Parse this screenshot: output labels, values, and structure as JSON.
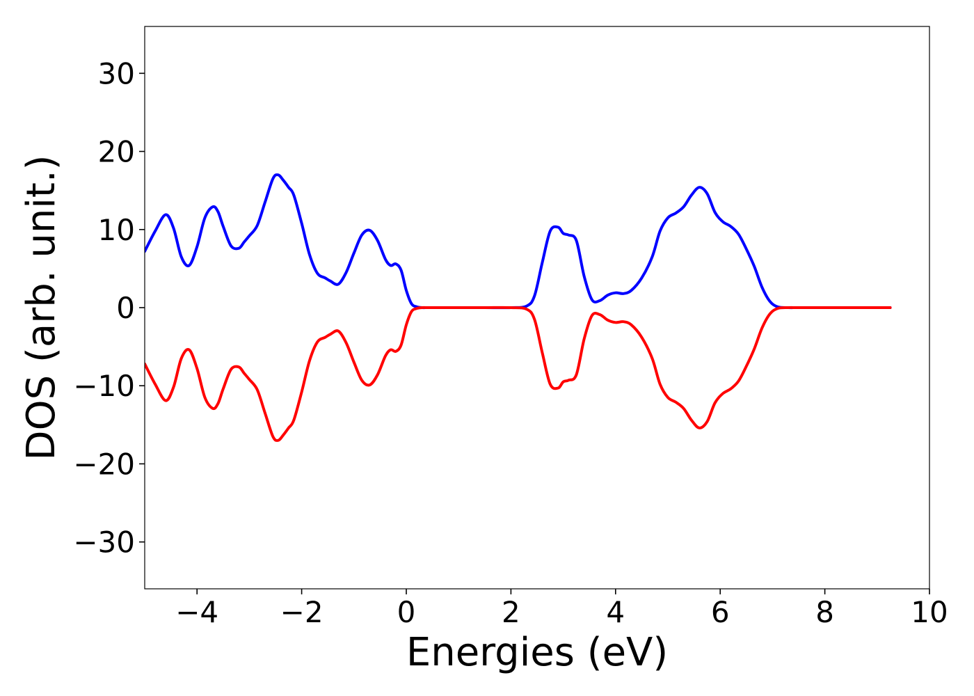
{
  "chart_data": {
    "type": "line",
    "title": "",
    "xlabel": "Energies (eV)",
    "ylabel": "DOS (arb. unit.)",
    "xlim": [
      -5,
      10
    ],
    "ylim": [
      -36,
      36
    ],
    "xticks": [
      {
        "value": -4,
        "label": "−4"
      },
      {
        "value": -2,
        "label": "−2"
      },
      {
        "value": 0,
        "label": "0"
      },
      {
        "value": 2,
        "label": "2"
      },
      {
        "value": 4,
        "label": "4"
      },
      {
        "value": 6,
        "label": "6"
      },
      {
        "value": 8,
        "label": "8"
      },
      {
        "value": 10,
        "label": "10"
      }
    ],
    "yticks": [
      {
        "value": 30,
        "label": "30"
      },
      {
        "value": 20,
        "label": "20"
      },
      {
        "value": 10,
        "label": "10"
      },
      {
        "value": 0,
        "label": "0"
      },
      {
        "value": -10,
        "label": "−10"
      },
      {
        "value": -20,
        "label": "−20"
      },
      {
        "value": -30,
        "label": "−30"
      }
    ],
    "grid": false,
    "legend": "none",
    "series": [
      {
        "color": "#0000ff",
        "x": [
          -5.0,
          -4.8,
          -4.6,
          -4.45,
          -4.3,
          -4.15,
          -4.0,
          -3.85,
          -3.7,
          -3.6,
          -3.5,
          -3.35,
          -3.2,
          -3.1,
          -3.0,
          -2.85,
          -2.7,
          -2.55,
          -2.45,
          -2.35,
          -2.25,
          -2.15,
          -2.0,
          -1.85,
          -1.7,
          -1.55,
          -1.45,
          -1.3,
          -1.15,
          -1.0,
          -0.85,
          -0.7,
          -0.55,
          -0.4,
          -0.3,
          -0.2,
          -0.1,
          0.0,
          0.1,
          0.2,
          0.3,
          0.4,
          0.5,
          0.65,
          0.8,
          1.0,
          1.5,
          2.0,
          2.3,
          2.45,
          2.6,
          2.75,
          2.9,
          3.0,
          3.1,
          3.25,
          3.4,
          3.55,
          3.7,
          3.85,
          4.0,
          4.15,
          4.3,
          4.5,
          4.7,
          4.85,
          5.0,
          5.15,
          5.3,
          5.45,
          5.6,
          5.75,
          5.9,
          6.05,
          6.2,
          6.35,
          6.5,
          6.65,
          6.8,
          6.95,
          7.1,
          7.3,
          7.5,
          8.0,
          8.5,
          9.25
        ],
        "y": [
          7.2,
          9.8,
          11.9,
          10.2,
          6.5,
          5.4,
          7.8,
          11.5,
          12.9,
          12.3,
          10.4,
          7.9,
          7.6,
          8.4,
          9.2,
          10.5,
          13.5,
          16.5,
          17.0,
          16.3,
          15.4,
          14.4,
          10.8,
          6.8,
          4.4,
          3.8,
          3.4,
          3.0,
          4.5,
          7.0,
          9.3,
          9.9,
          8.6,
          6.2,
          5.4,
          5.6,
          4.8,
          2.2,
          0.5,
          0.1,
          0.0,
          0.0,
          0.0,
          0.0,
          0.0,
          0.0,
          0.0,
          0.0,
          0.2,
          1.5,
          5.8,
          9.8,
          10.3,
          9.5,
          9.3,
          8.6,
          4.0,
          1.0,
          0.9,
          1.6,
          1.9,
          1.8,
          2.2,
          3.8,
          6.5,
          9.8,
          11.5,
          12.1,
          12.9,
          14.4,
          15.4,
          14.6,
          12.2,
          11.0,
          10.4,
          9.4,
          7.5,
          5.3,
          2.6,
          0.8,
          0.1,
          0.0,
          0.0,
          0.0,
          0.0,
          0.0
        ]
      },
      {
        "color": "#ff0000",
        "x": [
          -5.0,
          -4.8,
          -4.6,
          -4.45,
          -4.3,
          -4.15,
          -4.0,
          -3.85,
          -3.7,
          -3.6,
          -3.5,
          -3.35,
          -3.2,
          -3.1,
          -3.0,
          -2.85,
          -2.7,
          -2.55,
          -2.45,
          -2.35,
          -2.25,
          -2.15,
          -2.0,
          -1.85,
          -1.7,
          -1.55,
          -1.45,
          -1.3,
          -1.15,
          -1.0,
          -0.85,
          -0.7,
          -0.55,
          -0.4,
          -0.3,
          -0.2,
          -0.1,
          0.0,
          0.1,
          0.2,
          0.3,
          0.4,
          0.5,
          0.65,
          0.8,
          1.0,
          1.5,
          2.0,
          2.3,
          2.45,
          2.6,
          2.75,
          2.9,
          3.0,
          3.1,
          3.25,
          3.4,
          3.55,
          3.7,
          3.85,
          4.0,
          4.15,
          4.3,
          4.5,
          4.7,
          4.85,
          5.0,
          5.15,
          5.3,
          5.45,
          5.6,
          5.75,
          5.9,
          6.05,
          6.2,
          6.35,
          6.5,
          6.65,
          6.8,
          6.95,
          7.1,
          7.3,
          7.5,
          8.0,
          8.5,
          9.25
        ],
        "y": [
          -7.2,
          -9.8,
          -11.9,
          -10.2,
          -6.5,
          -5.4,
          -7.8,
          -11.5,
          -12.9,
          -12.3,
          -10.4,
          -7.9,
          -7.6,
          -8.4,
          -9.2,
          -10.5,
          -13.5,
          -16.5,
          -17.0,
          -16.3,
          -15.4,
          -14.4,
          -10.8,
          -6.8,
          -4.4,
          -3.8,
          -3.4,
          -3.0,
          -4.5,
          -7.0,
          -9.3,
          -9.9,
          -8.6,
          -6.2,
          -5.4,
          -5.6,
          -4.8,
          -2.2,
          -0.5,
          -0.1,
          0.0,
          0.0,
          0.0,
          0.0,
          0.0,
          0.0,
          0.0,
          0.0,
          -0.2,
          -1.5,
          -5.8,
          -9.8,
          -10.3,
          -9.5,
          -9.3,
          -8.6,
          -4.0,
          -1.0,
          -0.9,
          -1.6,
          -1.9,
          -1.8,
          -2.2,
          -3.8,
          -6.5,
          -9.8,
          -11.5,
          -12.1,
          -12.9,
          -14.4,
          -15.4,
          -14.6,
          -12.2,
          -11.0,
          -10.4,
          -9.4,
          -7.5,
          -5.3,
          -2.6,
          -0.8,
          -0.1,
          0.0,
          0.0,
          0.0,
          0.0,
          0.0
        ]
      }
    ]
  }
}
